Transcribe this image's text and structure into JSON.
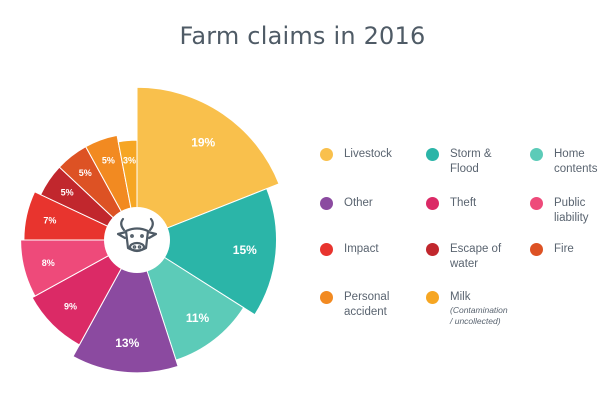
{
  "chart_data": {
    "type": "pie",
    "title": "Farm claims in 2016",
    "slices": [
      {
        "label": "Livestock",
        "value": 19,
        "display": "19%",
        "color": "#f9c04c"
      },
      {
        "label": "Storm & Flood",
        "value": 15,
        "display": "15%",
        "color": "#2bb5a8"
      },
      {
        "label": "Home contents",
        "value": 11,
        "display": "11%",
        "color": "#5ccbb8"
      },
      {
        "label": "Other",
        "value": 13,
        "display": "13%",
        "color": "#8b4aa0"
      },
      {
        "label": "Theft",
        "value": 9,
        "display": "9%",
        "color": "#db2a66"
      },
      {
        "label": "Public liability",
        "value": 8,
        "display": "8%",
        "color": "#ee4a7a"
      },
      {
        "label": "Impact",
        "value": 7,
        "display": "7%",
        "color": "#e8342e"
      },
      {
        "label": "Escape of water",
        "value": 5,
        "display": "5%",
        "color": "#c1272d"
      },
      {
        "label": "Fire",
        "value": 5,
        "display": "5%",
        "color": "#dd5224"
      },
      {
        "label": "Personal accident",
        "value": 5,
        "display": "5%",
        "color": "#f28a21"
      },
      {
        "label": "Milk",
        "value": 3,
        "display": "3%",
        "color": "#f6a623"
      }
    ]
  },
  "legend": [
    {
      "label": "Livestock",
      "color": "#f9c04c"
    },
    {
      "label": "Storm &\nFlood",
      "color": "#2bb5a8"
    },
    {
      "label": "Home\ncontents",
      "color": "#5ccbb8"
    },
    {
      "label": "Other",
      "color": "#8b4aa0"
    },
    {
      "label": "Theft",
      "color": "#db2a66"
    },
    {
      "label": "Public\nliability",
      "color": "#ee4a7a"
    },
    {
      "label": "Impact",
      "color": "#e8342e"
    },
    {
      "label": "Escape of\nwater",
      "color": "#c1272d"
    },
    {
      "label": "Fire",
      "color": "#dd5224"
    },
    {
      "label": "Personal\naccident",
      "color": "#f28a21"
    },
    {
      "label": "Milk",
      "note": "(Contamination\n/ uncollected)",
      "color": "#f6a623"
    }
  ],
  "center_icon": "cow-head-icon"
}
